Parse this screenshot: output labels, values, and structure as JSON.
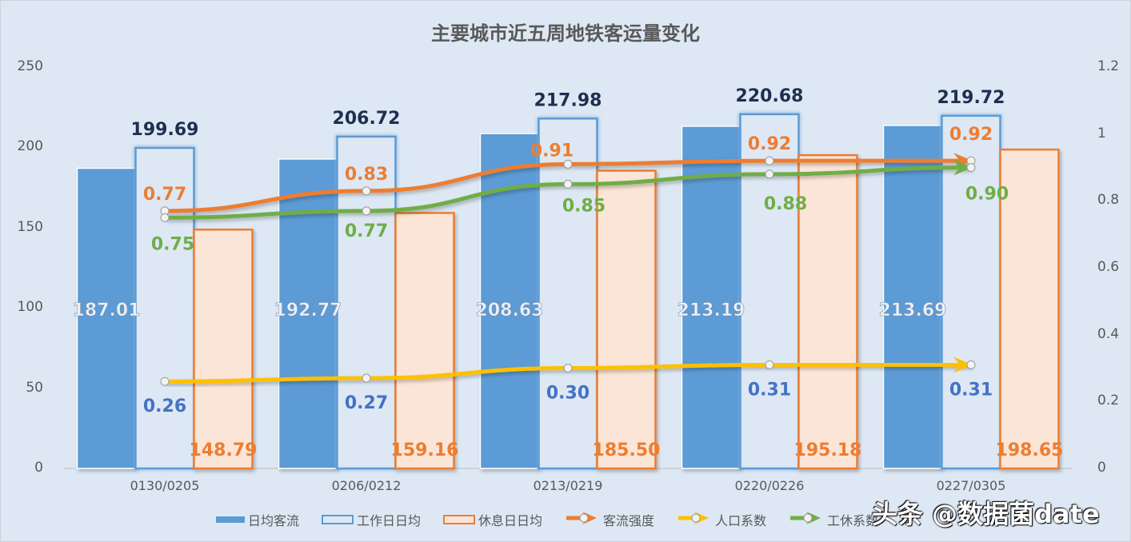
{
  "chart_data": {
    "type": "bar+line",
    "title": "主要城市近五周地铁客运量变化",
    "categories": [
      "0130/0205",
      "0206/0212",
      "0213/0219",
      "0220/0226",
      "0227/0305"
    ],
    "left_axis": {
      "ylim": [
        0,
        250
      ],
      "ticks": [
        "250",
        "200",
        "150",
        "100",
        "50",
        "0"
      ]
    },
    "right_axis": {
      "ylim": [
        0,
        1.2
      ],
      "ticks": [
        "1.2",
        "1",
        "0.8",
        "0.6",
        "0.4",
        "0.2",
        "0"
      ]
    },
    "series": [
      {
        "name": "日均客流",
        "type": "bar",
        "axis": "left",
        "color": "#5b9bd5",
        "values": [
          187.01,
          192.77,
          208.63,
          213.19,
          213.69
        ],
        "labels": [
          "187.01",
          "192.77",
          "208.63",
          "213.19",
          "213.69"
        ]
      },
      {
        "name": "工作日日均",
        "type": "bar",
        "axis": "left",
        "color": "#dde8f4",
        "border": "#5b9bd5",
        "values": [
          199.69,
          206.72,
          217.98,
          220.68,
          219.72
        ],
        "labels": [
          "199.69",
          "206.72",
          "217.98",
          "220.68",
          "219.72"
        ]
      },
      {
        "name": "休息日日均",
        "type": "bar",
        "axis": "left",
        "color": "#fbe5d6",
        "border": "#ed7d31",
        "values": [
          148.79,
          159.16,
          185.5,
          195.18,
          198.65
        ],
        "labels": [
          "148.79",
          "159.16",
          "185.50",
          "195.18",
          "198.65"
        ]
      },
      {
        "name": "客流强度",
        "type": "line",
        "axis": "right",
        "color": "#ed7d31",
        "values": [
          0.77,
          0.83,
          0.91,
          0.92,
          0.92
        ],
        "labels": [
          "0.77",
          "0.83",
          "0.91",
          "0.92",
          "0.92"
        ]
      },
      {
        "name": "人口系数",
        "type": "line",
        "axis": "right",
        "color": "#ffc000",
        "label_color": "#4472c4",
        "values": [
          0.26,
          0.27,
          0.3,
          0.31,
          0.31
        ],
        "labels": [
          "0.26",
          "0.27",
          "0.30",
          "0.31",
          "0.31"
        ]
      },
      {
        "name": "工休系数",
        "type": "line",
        "axis": "right",
        "color": "#70ad47",
        "values": [
          0.75,
          0.77,
          0.85,
          0.88,
          0.9
        ],
        "labels": [
          "0.75",
          "0.77",
          "0.85",
          "0.88",
          "0.90"
        ]
      }
    ],
    "legend_position": "bottom",
    "grid": false
  },
  "watermark": "头条 @数据菌date"
}
